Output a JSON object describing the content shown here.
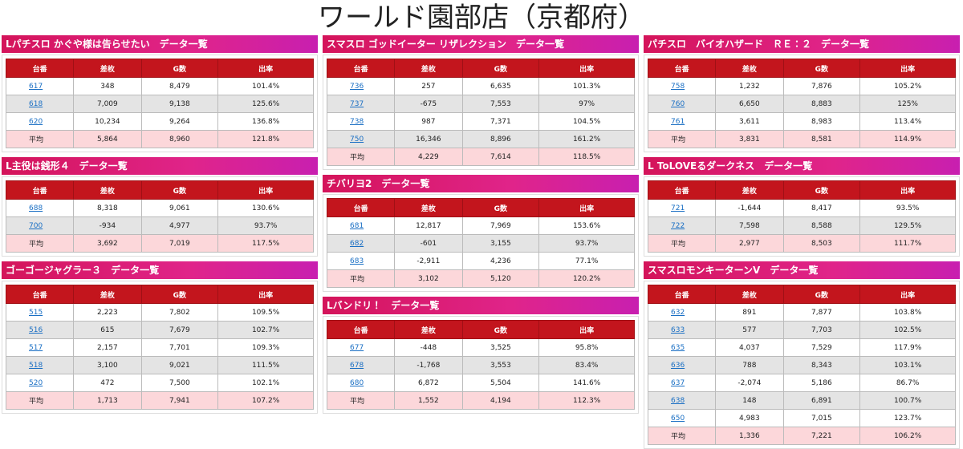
{
  "title": "ワールド園部店（京都府）",
  "columns": [
    [
      {
        "title": "Lパチスロ かぐや様は告らせたい　データ一覧",
        "headers": [
          "台番",
          "差枚",
          "G数",
          "出率"
        ],
        "rows": [
          [
            "617",
            "348",
            "8,479",
            "101.4%"
          ],
          [
            "618",
            "7,009",
            "9,138",
            "125.6%"
          ],
          [
            "620",
            "10,234",
            "9,264",
            "136.8%"
          ],
          [
            "平均",
            "5,864",
            "8,960",
            "121.8%"
          ]
        ]
      },
      {
        "title": "L主役は銭形４　データ一覧",
        "headers": [
          "台番",
          "差枚",
          "G数",
          "出率"
        ],
        "rows": [
          [
            "688",
            "8,318",
            "9,061",
            "130.6%"
          ],
          [
            "700",
            "-934",
            "4,977",
            "93.7%"
          ],
          [
            "平均",
            "3,692",
            "7,019",
            "117.5%"
          ]
        ]
      },
      {
        "title": "ゴーゴージャグラー３　データ一覧",
        "headers": [
          "台番",
          "差枚",
          "G数",
          "出率"
        ],
        "rows": [
          [
            "515",
            "2,223",
            "7,802",
            "109.5%"
          ],
          [
            "516",
            "615",
            "7,679",
            "102.7%"
          ],
          [
            "517",
            "2,157",
            "7,701",
            "109.3%"
          ],
          [
            "518",
            "3,100",
            "9,021",
            "111.5%"
          ],
          [
            "520",
            "472",
            "7,500",
            "102.1%"
          ],
          [
            "平均",
            "1,713",
            "7,941",
            "107.2%"
          ]
        ]
      }
    ],
    [
      {
        "title": "スマスロ ゴッドイーター リザレクション　データ一覧",
        "headers": [
          "台番",
          "差枚",
          "G数",
          "出率"
        ],
        "rows": [
          [
            "736",
            "257",
            "6,635",
            "101.3%"
          ],
          [
            "737",
            "-675",
            "7,553",
            "97%"
          ],
          [
            "738",
            "987",
            "7,371",
            "104.5%"
          ],
          [
            "750",
            "16,346",
            "8,896",
            "161.2%"
          ],
          [
            "平均",
            "4,229",
            "7,614",
            "118.5%"
          ]
        ]
      },
      {
        "title": "チバリヨ2　データ一覧",
        "headers": [
          "台番",
          "差枚",
          "G数",
          "出率"
        ],
        "rows": [
          [
            "681",
            "12,817",
            "7,969",
            "153.6%"
          ],
          [
            "682",
            "-601",
            "3,155",
            "93.7%"
          ],
          [
            "683",
            "-2,911",
            "4,236",
            "77.1%"
          ],
          [
            "平均",
            "3,102",
            "5,120",
            "120.2%"
          ]
        ]
      },
      {
        "title": "Lバンドリ！　データ一覧",
        "headers": [
          "台番",
          "差枚",
          "G数",
          "出率"
        ],
        "rows": [
          [
            "677",
            "-448",
            "3,525",
            "95.8%"
          ],
          [
            "678",
            "-1,768",
            "3,553",
            "83.4%"
          ],
          [
            "680",
            "6,872",
            "5,504",
            "141.6%"
          ],
          [
            "平均",
            "1,552",
            "4,194",
            "112.3%"
          ]
        ]
      }
    ],
    [
      {
        "title": "パチスロ　バイオハザード　ＲＥ：２　データ一覧",
        "headers": [
          "台番",
          "差枚",
          "G数",
          "出率"
        ],
        "rows": [
          [
            "758",
            "1,232",
            "7,876",
            "105.2%"
          ],
          [
            "760",
            "6,650",
            "8,883",
            "125%"
          ],
          [
            "761",
            "3,611",
            "8,983",
            "113.4%"
          ],
          [
            "平均",
            "3,831",
            "8,581",
            "114.9%"
          ]
        ]
      },
      {
        "title": "L ToLOVEるダークネス　データ一覧",
        "headers": [
          "台番",
          "差枚",
          "G数",
          "出率"
        ],
        "rows": [
          [
            "721",
            "-1,644",
            "8,417",
            "93.5%"
          ],
          [
            "722",
            "7,598",
            "8,588",
            "129.5%"
          ],
          [
            "平均",
            "2,977",
            "8,503",
            "111.7%"
          ]
        ]
      },
      {
        "title": "スマスロモンキーターンV　データ一覧",
        "headers": [
          "台番",
          "差枚",
          "G数",
          "出率"
        ],
        "rows": [
          [
            "632",
            "891",
            "7,877",
            "103.8%"
          ],
          [
            "633",
            "577",
            "7,703",
            "102.5%"
          ],
          [
            "635",
            "4,037",
            "7,529",
            "117.9%"
          ],
          [
            "636",
            "788",
            "8,343",
            "103.1%"
          ],
          [
            "637",
            "-2,074",
            "5,186",
            "86.7%"
          ],
          [
            "638",
            "148",
            "6,891",
            "100.7%"
          ],
          [
            "650",
            "4,983",
            "7,015",
            "123.7%"
          ],
          [
            "平均",
            "1,336",
            "7,221",
            "106.2%"
          ]
        ]
      }
    ]
  ]
}
